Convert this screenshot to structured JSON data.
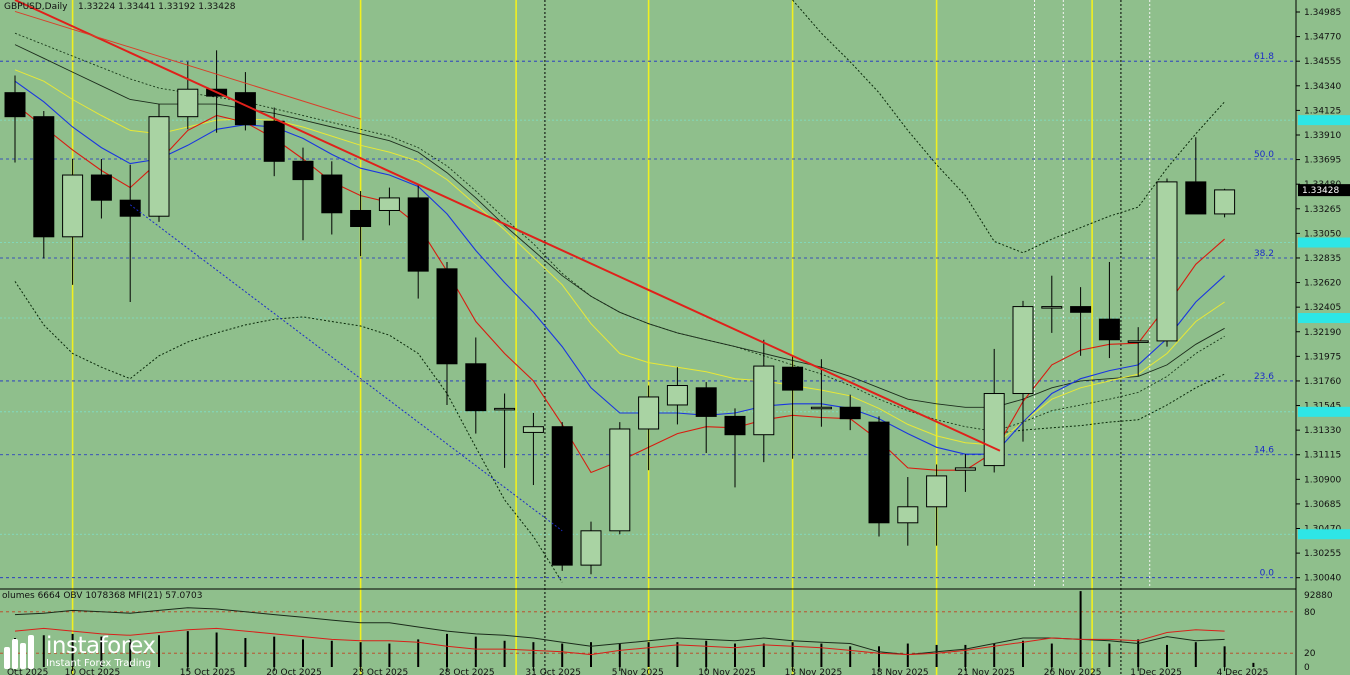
{
  "header": {
    "symbol": "GBPUSD,Daily",
    "ohlc": "1.33224 1.33441 1.33192 1.33428"
  },
  "indicator_header": "olumes 6664  OBV 1078368  MFI(21) 57.0703",
  "logo": {
    "name": "instaforex",
    "tagline": "Instant Forex Trading",
    "icon": "instaforex-logo-icon"
  },
  "colors": {
    "background": "#8fbf8c",
    "bull_candle": "#a9d3a3",
    "bear_candle": "#000000",
    "trendline": "#e0201a",
    "fibo": "#1c2cc8",
    "highlight_label": "#2ee6e6",
    "price_label": "#000000",
    "vertical_yellow": "#f0f020"
  },
  "chart_data": {
    "type": "candlestick",
    "symbol": "GBPUSD",
    "timeframe": "Daily",
    "ylim": [
      1.2995,
      1.3509
    ],
    "y_ticks": [
      1.34985,
      1.3477,
      1.34555,
      1.3434,
      1.34125,
      1.3391,
      1.33695,
      1.3348,
      1.33265,
      1.3305,
      1.32835,
      1.3262,
      1.32405,
      1.3219,
      1.31975,
      1.3176,
      1.31545,
      1.3133,
      1.31115,
      1.309,
      1.30685,
      1.3047,
      1.30255,
      1.3004
    ],
    "y_tick_labels": [
      "1.34985",
      "1.34770",
      "1.34555",
      "1.34340",
      "1.34125",
      "1.33910",
      "1.33695",
      "1.33480",
      "1.33265",
      "1.33050",
      "1.32835",
      "1.32620",
      "1.32405",
      "1.32190",
      "1.31975",
      "1.31760",
      "1.31545",
      "1.31330",
      "1.31115",
      "1.30900",
      "1.30685",
      "1.30470",
      "1.30255",
      "1.30040"
    ],
    "x_labels": [
      "Oct 2025",
      "10 Oct 2025",
      "15 Oct 2025",
      "20 Oct 2025",
      "23 Oct 2025",
      "28 Oct 2025",
      "31 Oct 2025",
      "5 Nov 2025",
      "10 Nov 2025",
      "13 Nov 2025",
      "18 Nov 2025",
      "21 Nov 2025",
      "26 Nov 2025",
      "1 Dec 2025",
      "4 Dec 2025"
    ],
    "x_label_index": [
      0,
      2,
      6,
      9,
      12,
      15,
      18,
      21,
      24,
      27,
      30,
      33,
      36,
      39,
      42
    ],
    "candles": [
      {
        "o": 1.3428,
        "h": 1.3443,
        "l": 1.3367,
        "c": 1.3407
      },
      {
        "o": 1.3407,
        "h": 1.3412,
        "l": 1.3283,
        "c": 1.3302
      },
      {
        "o": 1.3302,
        "h": 1.337,
        "l": 1.326,
        "c": 1.3356
      },
      {
        "o": 1.3356,
        "h": 1.337,
        "l": 1.3318,
        "c": 1.3334
      },
      {
        "o": 1.3334,
        "h": 1.3365,
        "l": 1.3245,
        "c": 1.332
      },
      {
        "o": 1.332,
        "h": 1.3418,
        "l": 1.3315,
        "c": 1.3407
      },
      {
        "o": 1.3407,
        "h": 1.3455,
        "l": 1.3396,
        "c": 1.3431
      },
      {
        "o": 1.3431,
        "h": 1.3465,
        "l": 1.3393,
        "c": 1.3425
      },
      {
        "o": 1.3428,
        "h": 1.3446,
        "l": 1.3395,
        "c": 1.34
      },
      {
        "o": 1.3403,
        "h": 1.3415,
        "l": 1.3355,
        "c": 1.3368
      },
      {
        "o": 1.3368,
        "h": 1.338,
        "l": 1.3299,
        "c": 1.3352
      },
      {
        "o": 1.3356,
        "h": 1.3368,
        "l": 1.3304,
        "c": 1.3323
      },
      {
        "o": 1.3325,
        "h": 1.3342,
        "l": 1.3285,
        "c": 1.3311
      },
      {
        "o": 1.3325,
        "h": 1.3345,
        "l": 1.3312,
        "c": 1.3336
      },
      {
        "o": 1.3336,
        "h": 1.3348,
        "l": 1.3248,
        "c": 1.3272
      },
      {
        "o": 1.3274,
        "h": 1.328,
        "l": 1.3155,
        "c": 1.3191
      },
      {
        "o": 1.3191,
        "h": 1.3214,
        "l": 1.313,
        "c": 1.315
      },
      {
        "o": 1.3152,
        "h": 1.3165,
        "l": 1.31,
        "c": 1.3152
      },
      {
        "o": 1.3131,
        "h": 1.3148,
        "l": 1.3085,
        "c": 1.3136
      },
      {
        "o": 1.3136,
        "h": 1.314,
        "l": 1.301,
        "c": 1.3015
      },
      {
        "o": 1.3015,
        "h": 1.3053,
        "l": 1.3007,
        "c": 1.3045
      },
      {
        "o": 1.3045,
        "h": 1.314,
        "l": 1.3042,
        "c": 1.3134
      },
      {
        "o": 1.3134,
        "h": 1.3172,
        "l": 1.3098,
        "c": 1.3162
      },
      {
        "o": 1.3155,
        "h": 1.3188,
        "l": 1.3138,
        "c": 1.3172
      },
      {
        "o": 1.317,
        "h": 1.3175,
        "l": 1.3113,
        "c": 1.3145
      },
      {
        "o": 1.3145,
        "h": 1.3152,
        "l": 1.3083,
        "c": 1.3129
      },
      {
        "o": 1.3129,
        "h": 1.3212,
        "l": 1.3105,
        "c": 1.3189
      },
      {
        "o": 1.3188,
        "h": 1.3198,
        "l": 1.3108,
        "c": 1.3168
      },
      {
        "o": 1.3152,
        "h": 1.3195,
        "l": 1.3136,
        "c": 1.3153
      },
      {
        "o": 1.3153,
        "h": 1.3164,
        "l": 1.3133,
        "c": 1.3143
      },
      {
        "o": 1.314,
        "h": 1.3145,
        "l": 1.304,
        "c": 1.3052
      },
      {
        "o": 1.3052,
        "h": 1.3092,
        "l": 1.3032,
        "c": 1.3066
      },
      {
        "o": 1.3066,
        "h": 1.3103,
        "l": 1.3032,
        "c": 1.3093
      },
      {
        "o": 1.3098,
        "h": 1.3112,
        "l": 1.3079,
        "c": 1.31
      },
      {
        "o": 1.3102,
        "h": 1.3204,
        "l": 1.3096,
        "c": 1.3165
      },
      {
        "o": 1.3165,
        "h": 1.3246,
        "l": 1.3123,
        "c": 1.3241
      },
      {
        "o": 1.3241,
        "h": 1.3268,
        "l": 1.3218,
        "c": 1.3241
      },
      {
        "o": 1.3241,
        "h": 1.3258,
        "l": 1.3198,
        "c": 1.3236
      },
      {
        "o": 1.323,
        "h": 1.328,
        "l": 1.3196,
        "c": 1.3212
      },
      {
        "o": 1.3211,
        "h": 1.3223,
        "l": 1.318,
        "c": 1.3211
      },
      {
        "o": 1.3211,
        "h": 1.3353,
        "l": 1.3206,
        "c": 1.335
      },
      {
        "o": 1.335,
        "h": 1.3389,
        "l": 1.3322,
        "c": 1.3322
      },
      {
        "o": 1.3322,
        "h": 1.3344,
        "l": 1.3319,
        "c": 1.3343
      }
    ],
    "trendline_main": {
      "from": [
        0,
        1.3509
      ],
      "to": [
        34.2,
        1.3115
      ]
    },
    "trendline_secondary": {
      "from": [
        0,
        1.3499
      ],
      "to": [
        12,
        1.3405
      ]
    },
    "ma_red": [
      1.3418,
      1.3398,
      1.3378,
      1.336,
      1.3345,
      1.3368,
      1.3395,
      1.3408,
      1.3402,
      1.3388,
      1.337,
      1.335,
      1.3338,
      1.3332,
      1.3312,
      1.3272,
      1.3228,
      1.32,
      1.3176,
      1.3138,
      1.3096,
      1.3106,
      1.3118,
      1.313,
      1.3136,
      1.3135,
      1.3142,
      1.3146,
      1.3144,
      1.3143,
      1.3124,
      1.31,
      1.3098,
      1.3098,
      1.3114,
      1.3158,
      1.319,
      1.3203,
      1.3208,
      1.3209,
      1.3242,
      1.3278,
      1.33
    ],
    "ma_blue": [
      1.3438,
      1.342,
      1.3398,
      1.338,
      1.3366,
      1.337,
      1.3382,
      1.3396,
      1.34,
      1.3398,
      1.3388,
      1.3374,
      1.3362,
      1.3356,
      1.3346,
      1.3322,
      1.329,
      1.3262,
      1.3236,
      1.3206,
      1.317,
      1.3148,
      1.3148,
      1.3148,
      1.3146,
      1.3148,
      1.3154,
      1.3156,
      1.3156,
      1.3152,
      1.3143,
      1.313,
      1.3118,
      1.3112,
      1.3112,
      1.314,
      1.3165,
      1.3178,
      1.3185,
      1.319,
      1.3213,
      1.3245,
      1.3268
    ],
    "ma_yellow": [
      1.3448,
      1.3438,
      1.3422,
      1.3408,
      1.3395,
      1.3392,
      1.3398,
      1.3404,
      1.3405,
      1.3404,
      1.3398,
      1.339,
      1.3382,
      1.3376,
      1.3368,
      1.3352,
      1.333,
      1.3308,
      1.3284,
      1.326,
      1.3226,
      1.32,
      1.3192,
      1.3188,
      1.3184,
      1.3178,
      1.3176,
      1.3172,
      1.3168,
      1.3163,
      1.3152,
      1.3138,
      1.3128,
      1.3122,
      1.312,
      1.314,
      1.316,
      1.317,
      1.3176,
      1.3182,
      1.32,
      1.3228,
      1.3245
    ],
    "ma_black": [
      1.347,
      1.3458,
      1.3446,
      1.3434,
      1.3422,
      1.3418,
      1.3418,
      1.3418,
      1.3414,
      1.341,
      1.3404,
      1.3398,
      1.3392,
      1.3386,
      1.3376,
      1.3358,
      1.3336,
      1.3312,
      1.329,
      1.3268,
      1.325,
      1.3236,
      1.3226,
      1.3218,
      1.3212,
      1.3206,
      1.32,
      1.3194,
      1.3188,
      1.318,
      1.317,
      1.316,
      1.3156,
      1.3153,
      1.3153,
      1.316,
      1.317,
      1.3176,
      1.3178,
      1.318,
      1.319,
      1.3208,
      1.3222
    ],
    "band_upper": [
      1.348,
      1.347,
      1.346,
      1.345,
      1.344,
      1.3432,
      1.3428,
      1.3424,
      1.342,
      1.3414,
      1.3408,
      1.3402,
      1.3396,
      1.339,
      1.338,
      1.3364,
      1.3342,
      1.3318,
      1.3296,
      1.327,
      1.325,
      1.3236,
      1.3226,
      1.3218,
      1.3212,
      1.3206,
      1.3198,
      1.319,
      1.3182,
      1.3172,
      1.316,
      1.315,
      1.3142,
      1.3136,
      1.3132,
      1.314,
      1.315,
      1.3155,
      1.316,
      1.3166,
      1.318,
      1.32,
      1.3215
    ],
    "envelope_upper": [
      null,
      null,
      null,
      null,
      null,
      null,
      null,
      null,
      null,
      null,
      null,
      null,
      null,
      null,
      null,
      null,
      null,
      null,
      null,
      null,
      null,
      null,
      null,
      null,
      null,
      null,
      null,
      1.3509,
      1.348,
      1.3455,
      1.3428,
      1.3395,
      1.3365,
      1.3338,
      1.3298,
      1.3288,
      1.33,
      1.331,
      1.332,
      1.3328,
      1.3362,
      1.3392,
      1.342
    ],
    "envelope_lower": [
      1.3263,
      1.3225,
      1.32,
      1.3188,
      1.3178,
      1.3198,
      1.321,
      1.3218,
      1.3225,
      1.323,
      1.3232,
      1.3228,
      1.3224,
      1.3216,
      1.32,
      1.3165,
      1.3118,
      1.3072,
      1.304,
      1.3,
      null,
      null,
      null,
      null,
      null,
      null,
      null,
      null,
      null,
      null,
      null,
      null,
      null,
      null,
      1.313,
      1.3133,
      1.3135,
      1.3137,
      1.314,
      1.3142,
      1.3155,
      1.317,
      1.3182
    ],
    "fibo_levels": [
      {
        "label": "61.8",
        "value": 1.34555
      },
      {
        "label": "50.0",
        "value": 1.337
      },
      {
        "label": "38.2",
        "value": 1.32835
      },
      {
        "label": "23.6",
        "value": 1.3176
      },
      {
        "label": "14.6",
        "value": 1.31115
      },
      {
        "label": "0.0",
        "value": 1.3004
      }
    ],
    "highlight_levels": [
      1.3404,
      1.3297,
      1.3231,
      1.3149,
      1.3042
    ],
    "current_price": 1.33428,
    "current_price_label": "1.33428",
    "vertical_lines_yellow": [
      2,
      12,
      17.4,
      22,
      27,
      32,
      37.4
    ],
    "vertical_lines_black_dotted": [
      18.4,
      38.4
    ],
    "vertical_lines_white_dotted": [
      35.4,
      36.4,
      39.4
    ],
    "volume_indicator": {
      "label": "olumes 6664  OBV 1078368  MFI(21) 57.0703",
      "ylim": [
        0,
        100
      ],
      "y_ticks": [
        0,
        20,
        80
      ],
      "y_tick_labels": [
        "0",
        "20",
        "80"
      ],
      "top_label": "92880",
      "levels": [
        20,
        80
      ],
      "volumes": [
        42,
        46,
        48,
        44,
        40,
        46,
        52,
        50,
        42,
        44,
        40,
        38,
        36,
        34,
        40,
        48,
        44,
        38,
        36,
        34,
        36,
        34,
        36,
        36,
        38,
        34,
        34,
        36,
        34,
        30,
        30,
        34,
        32,
        32,
        34,
        38,
        34,
        32,
        34,
        40,
        32,
        36,
        30
      ],
      "volume_last": 6,
      "volume_spike_index": 37,
      "volume_spike": 110,
      "obv": [
        76,
        78,
        82,
        80,
        78,
        82,
        86,
        84,
        80,
        76,
        72,
        68,
        64,
        64,
        58,
        52,
        48,
        46,
        42,
        36,
        30,
        34,
        38,
        42,
        40,
        38,
        42,
        38,
        36,
        34,
        22,
        18,
        22,
        26,
        34,
        42,
        42,
        40,
        38,
        34,
        44,
        38,
        40
      ],
      "mfi": [
        52,
        56,
        52,
        48,
        46,
        50,
        54,
        56,
        52,
        48,
        44,
        40,
        38,
        38,
        36,
        30,
        26,
        26,
        24,
        22,
        18,
        24,
        28,
        32,
        30,
        28,
        32,
        30,
        28,
        24,
        20,
        18,
        20,
        24,
        30,
        36,
        42,
        40,
        40,
        38,
        50,
        54,
        52
      ]
    }
  }
}
